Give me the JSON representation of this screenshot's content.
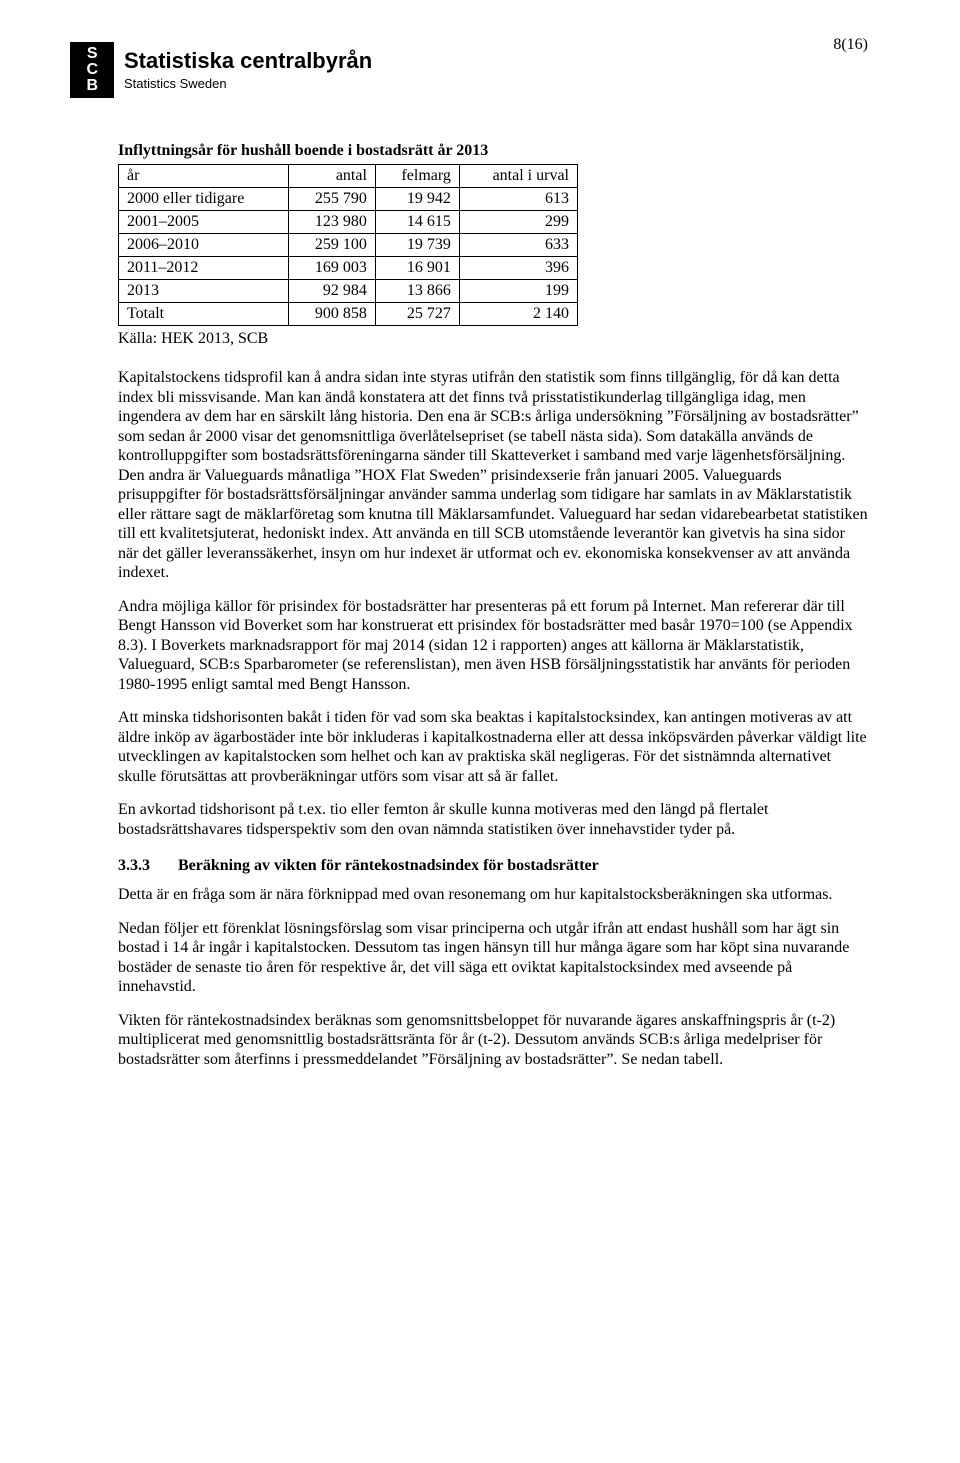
{
  "page_number": "8(16)",
  "logo": {
    "mark_line1": "S",
    "mark_line2": "C",
    "mark_line3": "B",
    "main": "Statistiska centralbyrån",
    "sub": "Statistics Sweden"
  },
  "table": {
    "title": "Inflyttningsår för hushåll boende i bostadsrätt år 2013",
    "columns": [
      "år",
      "antal",
      "felmarg",
      "antal i urval"
    ],
    "rows": [
      [
        "2000 eller tidigare",
        "255 790",
        "19 942",
        "613"
      ],
      [
        "2001–2005",
        "123 980",
        "14 615",
        "299"
      ],
      [
        "2006–2010",
        "259 100",
        "19 739",
        "633"
      ],
      [
        "2011–2012",
        "169 003",
        "16 901",
        "396"
      ],
      [
        "2013",
        "92 984",
        "13 866",
        "199"
      ],
      [
        "Totalt",
        "900 858",
        "25 727",
        "2 140"
      ]
    ],
    "source": "Källa: HEK 2013, SCB"
  },
  "paragraphs": {
    "p1": "Kapitalstockens tidsprofil kan å andra sidan inte styras utifrån den statistik som finns tillgänglig, för då kan detta index bli missvisande. Man kan ändå konstatera att det finns två prisstatistikunderlag tillgängliga idag, men ingendera av dem har en särskilt lång historia. Den ena är SCB:s årliga undersökning ”Försäljning av bostadsrätter” som sedan år 2000 visar det genomsnittliga överlåtelsepriset (se tabell nästa sida). Som datakälla används de kontrolluppgifter som bostadsrättsföreningarna sänder till Skatteverket i samband med varje lägenhetsförsäljning. Den andra är Valueguards månatliga ”HOX Flat Sweden” prisindexserie från januari 2005. Valueguards prisuppgifter för bostadsrättsförsäljningar använder samma underlag som tidigare har samlats in av Mäklarstatistik eller rättare sagt de mäklarföretag som knutna till Mäklarsamfundet. Valueguard har sedan vidarebearbetat statistiken till ett kvalitetsjuterat, hedoniskt index. Att använda en till SCB utomstående leverantör kan givetvis ha sina sidor när det gäller leveranssäkerhet, insyn om hur indexet är utformat och ev. ekonomiska konsekvenser av att använda indexet.",
    "p2": "Andra möjliga källor för prisindex för bostadsrätter har  presenteras på ett forum på Internet. Man refererar där till Bengt Hansson vid Boverket som har konstruerat ett prisindex för bostadsrätter med basår 1970=100 (se Appendix 8.3). I Boverkets marknadsrapport för maj 2014 (sidan 12 i rapporten) anges att källorna är Mäklarstatistik,  Valueguard, SCB:s Sparbarometer (se referenslistan), men även HSB försäljningsstatistik har använts för perioden 1980-1995 enligt samtal med Bengt Hansson.",
    "p3": "Att minska tidshorisonten bakåt i tiden för vad som ska beaktas i kapitalstocksindex, kan antingen motiveras av att äldre inköp av ägarbostäder inte bör inkluderas i kapitalkostnaderna eller att dessa inköpsvärden påverkar väldigt lite utvecklingen av kapitalstocken som helhet och kan av praktiska skäl negligeras. För det sistnämnda alternativet skulle förutsättas att provberäkningar utförs som visar att så är fallet.",
    "p4": "En avkortad tidshorisont på t.ex. tio eller femton år skulle kunna motiveras med den längd på flertalet bostadsrättshavares tidsperspektiv som den ovan nämnda statistiken över innehavstider tyder på.",
    "p5": "Detta är en fråga som är  nära förknippad med ovan resonemang om hur kapitalstocksberäkningen ska utformas.",
    "p6": "Nedan följer ett förenklat lösningsförslag som visar principerna och utgår ifrån att endast hushåll som har ägt sin bostad i 14 år ingår i kapitalstocken. Dessutom tas ingen hänsyn till hur många ägare som har köpt sina nuvarande bostäder de senaste tio åren för respektive år, det vill säga ett oviktat kapitalstocksindex med avseende på innehavstid.",
    "p7": "Vikten för räntekostnadsindex beräknas som genomsnittsbeloppet för nuvarande ägares anskaffningspris år (t-2) multiplicerat med genomsnittlig bostadsrättsränta för år (t-2). Dessutom används SCB:s årliga medelpriser för bostadsrätter som återfinns i pressmeddelandet ”Försäljning av bostadsrätter”.  Se nedan tabell."
  },
  "section": {
    "number": "3.3.3",
    "title": "Beräkning av vikten för räntekostnadsindex för bostadsrätter"
  }
}
